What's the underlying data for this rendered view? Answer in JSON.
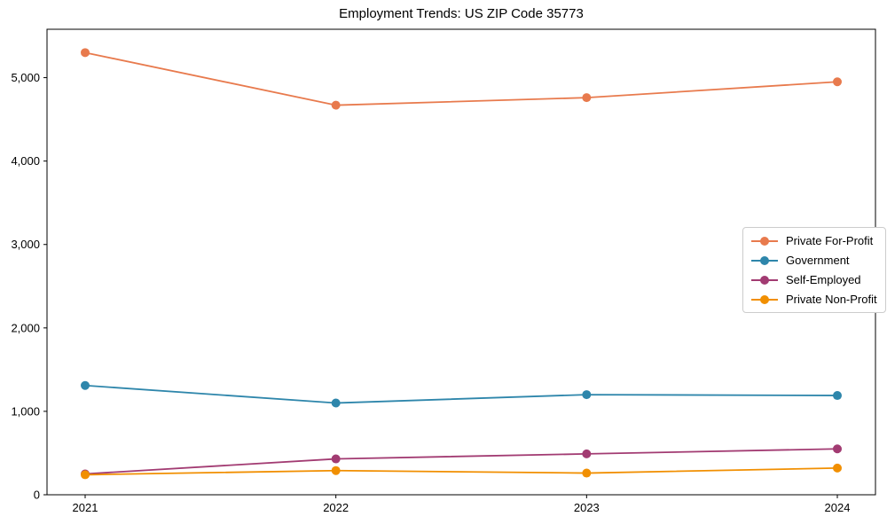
{
  "page": {
    "title": "Employment Trends: US ZIP Code 35773"
  },
  "chart_data": {
    "type": "line",
    "title": "Employment Trends: US ZIP Code 35773",
    "xlabel": "",
    "ylabel": "",
    "categories": [
      "2021",
      "2022",
      "2023",
      "2024"
    ],
    "series": [
      {
        "name": "Private For-Profit",
        "color": "#E87A4D",
        "values": [
          5300,
          4670,
          4760,
          4950
        ]
      },
      {
        "name": "Government",
        "color": "#2E86AB",
        "values": [
          1310,
          1100,
          1200,
          1190
        ]
      },
      {
        "name": "Self-Employed",
        "color": "#A23B72",
        "values": [
          250,
          430,
          490,
          550
        ]
      },
      {
        "name": "Private Non-Profit",
        "color": "#F18F01",
        "values": [
          240,
          290,
          260,
          320
        ]
      }
    ],
    "ylim": [
      0,
      5580
    ],
    "yticks": [
      {
        "value": 0,
        "label": "0"
      },
      {
        "value": 1000,
        "label": "1,000"
      },
      {
        "value": 2000,
        "label": "2,000"
      },
      {
        "value": 3000,
        "label": "3,000"
      },
      {
        "value": 4000,
        "label": "4,000"
      },
      {
        "value": 5000,
        "label": "5,000"
      }
    ],
    "grid": false,
    "legend_position": "center-right",
    "marker": "circle",
    "axis_color": "#000000"
  }
}
